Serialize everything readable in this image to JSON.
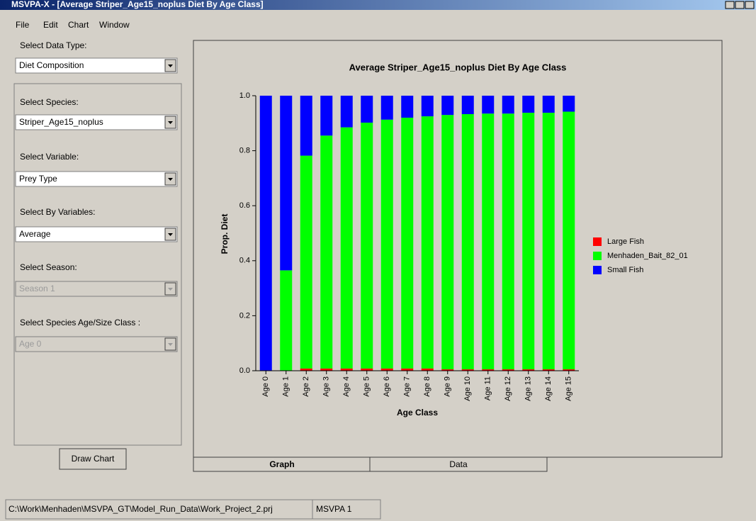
{
  "window": {
    "title": "MSVPA-X - [Average Striper_Age15_noplus Diet By Age Class]"
  },
  "menu": [
    "File",
    "Edit",
    "Chart",
    "Window"
  ],
  "panel": {
    "data_type_label": "Select Data Type:",
    "data_type": "Diet Composition",
    "species_label": "Select Species:",
    "species": "Striper_Age15_noplus",
    "variable_label": "Select Variable:",
    "variable": "Prey Type",
    "by_label": "Select By Variables:",
    "by": "Average",
    "season_label": "Select Season:",
    "season": "Season 1",
    "age_label": "Select Species Age/Size Class :",
    "age": "Age 0",
    "button": "Draw Chart"
  },
  "tabs": [
    "Graph",
    "Data"
  ],
  "status": [
    "C:\\Work\\Menhaden\\MSVPA_GT\\Model_Run_Data\\Work_Project_2.prj",
    "MSVPA 1"
  ],
  "chart_data": {
    "type": "stacked_bar",
    "title": "Average Striper_Age15_noplus Diet By Age Class",
    "x_label": "Age Class",
    "y_label": "Prop. Diet",
    "categories": [
      "Age 0",
      "Age 1",
      "Age 2",
      "Age 3",
      "Age 4",
      "Age 5",
      "Age 6",
      "Age 7",
      "Age 8",
      "Age 9",
      "Age 10",
      "Age 11",
      "Age 12",
      "Age 13",
      "Age 14",
      "Age 15"
    ],
    "series": [
      {
        "name": "Large Fish",
        "color": "#ff0000",
        "values": [
          0,
          0,
          0.008,
          0.008,
          0.008,
          0.008,
          0.008,
          0.008,
          0.008,
          0.005,
          0.005,
          0.005,
          0.005,
          0.005,
          0.005,
          0.005
        ]
      },
      {
        "name": "Menhaden_Bait_82_01",
        "color": "#00ff00",
        "values": [
          0,
          0.365,
          0.774,
          0.847,
          0.877,
          0.894,
          0.905,
          0.912,
          0.917,
          0.925,
          0.928,
          0.93,
          0.93,
          0.933,
          0.933,
          0.937
        ]
      },
      {
        "name": "Small Fish",
        "color": "#0000ff",
        "values": [
          1,
          0.635,
          0.218,
          0.145,
          0.115,
          0.098,
          0.087,
          0.08,
          0.075,
          0.07,
          0.067,
          0.065,
          0.065,
          0.062,
          0.062,
          0.058
        ]
      }
    ],
    "ylim": [
      0,
      1
    ],
    "yticks": [
      {
        "value": 0,
        "label": "0.0"
      },
      0.2,
      0.4,
      0.6,
      0.8,
      {
        "value": 1,
        "label": "1.0"
      }
    ],
    "legend": "right"
  }
}
